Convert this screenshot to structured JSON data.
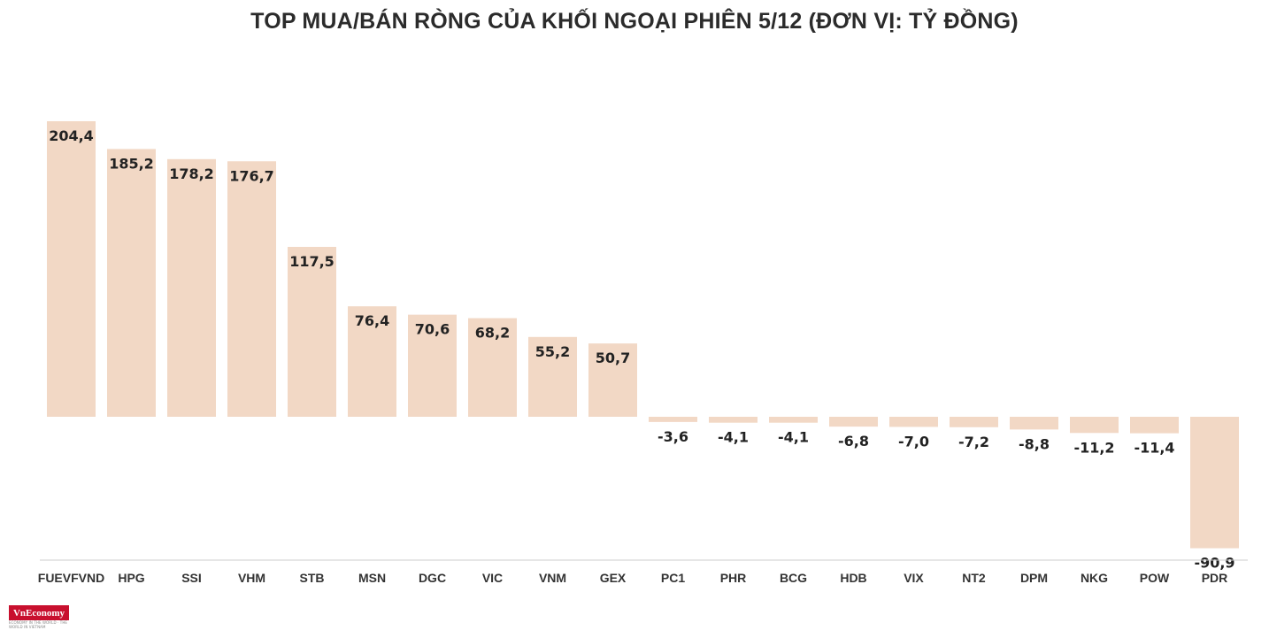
{
  "chart_data": {
    "type": "bar",
    "title": "TOP MUA/BÁN RÒNG CỦA KHỐI NGOẠI PHIÊN 5/12 (ĐƠN VỊ: TỶ ĐỒNG)",
    "xlabel": "",
    "ylabel": "",
    "ylim": [
      -90.9,
      204.4
    ],
    "grid": false,
    "categories": [
      "FUEVFVND",
      "HPG",
      "SSI",
      "VHM",
      "STB",
      "MSN",
      "DGC",
      "VIC",
      "VNM",
      "GEX",
      "PC1",
      "PHR",
      "BCG",
      "HDB",
      "VIX",
      "NT2",
      "DPM",
      "NKG",
      "POW",
      "PDR"
    ],
    "values": [
      204.4,
      185.2,
      178.2,
      176.7,
      117.5,
      76.4,
      70.6,
      68.2,
      55.2,
      50.7,
      -3.6,
      -4.1,
      -4.1,
      -6.8,
      -7.0,
      -7.2,
      -8.8,
      -11.2,
      -11.4,
      -90.9
    ],
    "labels": [
      "204,4",
      "185,2",
      "178,2",
      "176,7",
      "117,5",
      "76,4",
      "70,6",
      "68,2",
      "55,2",
      "50,7",
      "-3,6",
      "-4,1",
      "-4,1",
      "-6,8",
      "-7,0",
      "-7,2",
      "-8,8",
      "-11,2",
      "-11,4",
      "-90,9"
    ],
    "bar_color": "#f2d8c5",
    "axis_color": "#cccccc"
  },
  "logo": {
    "text": "VnEconomy",
    "tagline": "ECONOMY IN THE WORLD · THE WORLD IN VIETNAM",
    "color": "#c8102e"
  }
}
